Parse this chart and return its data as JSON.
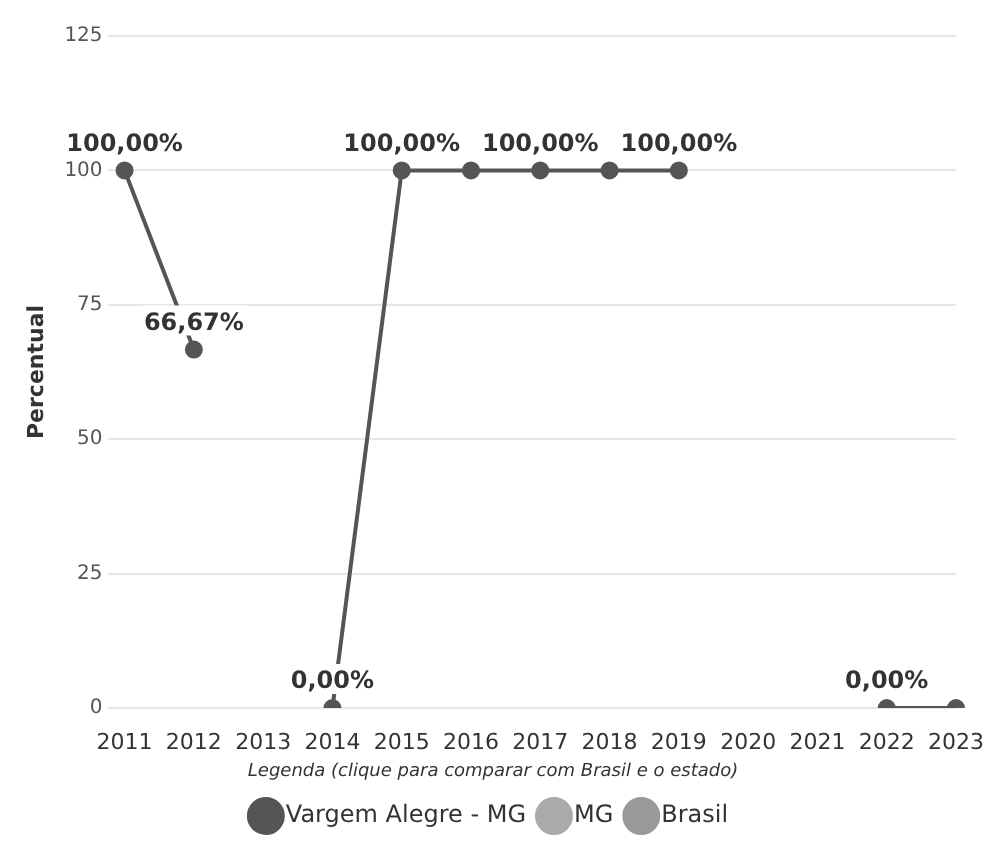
{
  "chart_data": {
    "type": "line",
    "ylabel": "Percentual",
    "legend_title": "Legenda (clique para comparar com Brasil e o estado)",
    "categories": [
      "2011",
      "2012",
      "2013",
      "2014",
      "2015",
      "2016",
      "2017",
      "2018",
      "2019",
      "2020",
      "2021",
      "2022",
      "2023"
    ],
    "series": [
      {
        "name": "Vargem Alegre - MG",
        "color": "#555555",
        "values": [
          100,
          66.67,
          null,
          0,
          100,
          100,
          100,
          100,
          100,
          null,
          null,
          0,
          0
        ],
        "value_labels": [
          "100,00%",
          "66,67%",
          null,
          "0,00%",
          "100,00%",
          null,
          "100,00%",
          null,
          "100,00%",
          null,
          null,
          "0,00%",
          null
        ]
      },
      {
        "name": "MG",
        "color": "#aaaaaa",
        "values": [
          null,
          null,
          null,
          null,
          null,
          null,
          null,
          null,
          null,
          null,
          null,
          null,
          null
        ]
      },
      {
        "name": "Brasil",
        "color": "#999999",
        "values": [
          null,
          null,
          null,
          null,
          null,
          null,
          null,
          null,
          null,
          null,
          null,
          null,
          null
        ]
      }
    ],
    "ylim": [
      0,
      125
    ],
    "yticks": [
      0,
      25,
      50,
      75,
      100,
      125
    ],
    "grid": "y",
    "legend": "bottom",
    "marker": "circle",
    "line_style": "solid"
  }
}
